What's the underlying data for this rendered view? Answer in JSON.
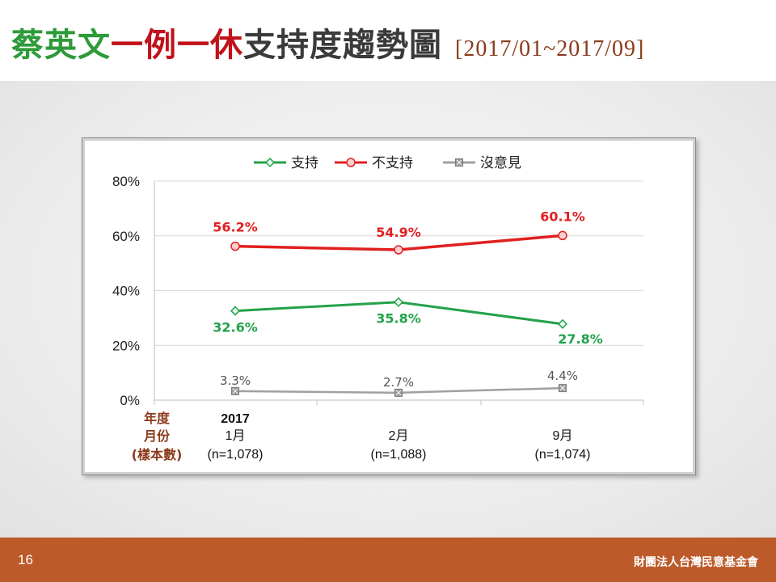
{
  "title": {
    "name": "蔡英文",
    "policy": "一例一休",
    "trend": "支持度趨勢圖",
    "range": "[2017/01~2017/09]"
  },
  "footer": {
    "page_number": "16",
    "organization": "財團法人台灣民意基金會"
  },
  "colors": {
    "title_name": "#2e9a3a",
    "title_policy": "#c0121a",
    "support": "#22a24a",
    "oppose": "#e02020",
    "no_opinion": "#a0a0a0",
    "axis_title": "#8a3a1a",
    "footer_bg": "#bc5a2a"
  },
  "chart_data": {
    "type": "line",
    "categories": [
      "1月",
      "2月",
      "9月"
    ],
    "category_year": [
      "2017",
      "",
      ""
    ],
    "sample_sizes": [
      "(n=1,078)",
      "(n=1,088)",
      "(n=1,074)"
    ],
    "x_axis_title": [
      "年度",
      "月份",
      "(樣本數)"
    ],
    "ylim": [
      0,
      80
    ],
    "yticks": [
      "0%",
      "20%",
      "40%",
      "60%",
      "80%"
    ],
    "grid": true,
    "legend_position": "top",
    "series": [
      {
        "name": "支持",
        "values": [
          32.6,
          35.8,
          27.8
        ],
        "labels": [
          "32.6%",
          "35.8%",
          "27.8%"
        ],
        "color": "#22a24a",
        "marker": "diamond"
      },
      {
        "name": "不支持",
        "values": [
          56.2,
          54.9,
          60.1
        ],
        "labels": [
          "56.2%",
          "54.9%",
          "60.1%"
        ],
        "color": "#e02020",
        "marker": "circle"
      },
      {
        "name": "沒意見",
        "values": [
          3.3,
          2.7,
          4.4
        ],
        "labels": [
          "3.3%",
          "2.7%",
          "4.4%"
        ],
        "color": "#a0a0a0",
        "marker": "square-x"
      }
    ]
  }
}
